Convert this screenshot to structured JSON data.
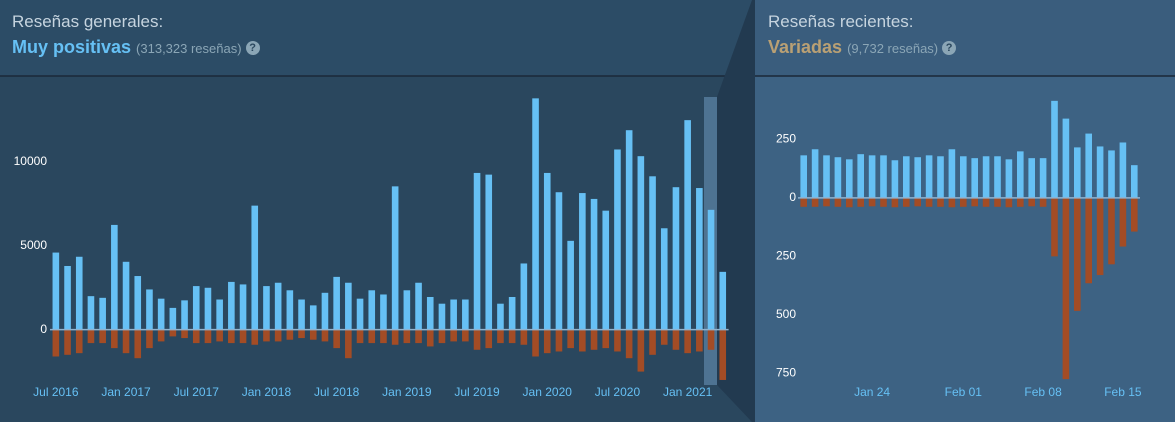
{
  "chart_data": [
    {
      "type": "bar",
      "title": "Reseñas generales:",
      "subtitle": "Muy positivas",
      "subtitle_note": "(313,323 reseñas)",
      "subtitle_color": "#66c0f4",
      "categories": [
        "Jul 2016",
        null,
        null,
        null,
        null,
        null,
        "Jan 2017",
        null,
        null,
        null,
        null,
        null,
        "Jul 2017",
        null,
        null,
        null,
        null,
        null,
        "Jan 2018",
        null,
        null,
        null,
        null,
        null,
        "Jul 2018",
        null,
        null,
        null,
        null,
        null,
        "Jan 2019",
        null,
        null,
        null,
        null,
        null,
        "Jul 2019",
        null,
        null,
        null,
        null,
        null,
        "Jan 2020",
        null,
        null,
        null,
        null,
        null,
        "Jul 2020",
        null,
        null,
        null,
        null,
        null,
        "Jan 2021",
        null,
        null,
        null
      ],
      "series": [
        {
          "color": "#66c0f4",
          "values": [
            4600,
            3800,
            4350,
            2000,
            1900,
            6250,
            4050,
            3200,
            2400,
            1850,
            1300,
            1750,
            2600,
            2500,
            1800,
            2850,
            2700,
            7400,
            2600,
            2800,
            2350,
            1800,
            1450,
            2200,
            3150,
            2800,
            1850,
            2350,
            2100,
            8550,
            2350,
            2800,
            1950,
            1550,
            1800,
            1800,
            9350,
            9250,
            1550,
            1950,
            3950,
            13800,
            9350,
            8200,
            5300,
            8150,
            7800,
            7100,
            10750,
            11900,
            10350,
            9150,
            6050,
            8500,
            12500,
            8450,
            7150,
            3450
          ]
        },
        {
          "color": "#a34c25",
          "values": [
            -1600,
            -1500,
            -1400,
            -800,
            -800,
            -1100,
            -1400,
            -1700,
            -1100,
            -700,
            -400,
            -500,
            -800,
            -800,
            -700,
            -800,
            -800,
            -900,
            -700,
            -700,
            -600,
            -500,
            -600,
            -700,
            -1100,
            -1700,
            -800,
            -800,
            -800,
            -900,
            -800,
            -800,
            -1000,
            -800,
            -700,
            -700,
            -1200,
            -1100,
            -800,
            -800,
            -900,
            -1600,
            -1400,
            -1300,
            -1100,
            -1300,
            -1200,
            -1100,
            -1300,
            -1700,
            -2500,
            -1500,
            -900,
            -1200,
            -1400,
            -1300,
            -1200,
            -3000
          ]
        }
      ],
      "ylim": [
        -3300,
        14000
      ],
      "yticks": [
        0,
        5000,
        10000
      ]
    },
    {
      "type": "bar",
      "title": "Reseñas recientes:",
      "subtitle": "Variadas",
      "subtitle_note": "(9,732 reseñas)",
      "subtitle_color": "#b9a074",
      "categories": [
        null,
        null,
        null,
        null,
        null,
        null,
        "Jan 24",
        null,
        null,
        null,
        null,
        null,
        null,
        null,
        "Feb 01",
        null,
        null,
        null,
        null,
        null,
        null,
        "Feb 08",
        null,
        null,
        null,
        null,
        null,
        null,
        "Feb 15",
        null
      ],
      "series": [
        {
          "color": "#66c0f4",
          "values": [
            182,
            208,
            182,
            174,
            165,
            187,
            182,
            182,
            161,
            178,
            174,
            182,
            178,
            208,
            178,
            170,
            178,
            178,
            165,
            199,
            170,
            170,
            415,
            339,
            216,
            275,
            220,
            203,
            237,
            140
          ]
        },
        {
          "color": "#a34c25",
          "values": [
            -38,
            -38,
            -36,
            -38,
            -40,
            -38,
            -36,
            -38,
            -40,
            -38,
            -36,
            -38,
            -38,
            -40,
            -38,
            -36,
            -38,
            -38,
            -40,
            -38,
            -36,
            -38,
            -250,
            -775,
            -483,
            -365,
            -330,
            -284,
            -208,
            -144
          ]
        }
      ],
      "ylim": [
        -800,
        440
      ],
      "yticks": [
        250,
        0,
        {
          "value": -250,
          "label": "250"
        },
        {
          "value": -500,
          "label": "500"
        },
        {
          "value": -750,
          "label": "750"
        }
      ]
    }
  ]
}
